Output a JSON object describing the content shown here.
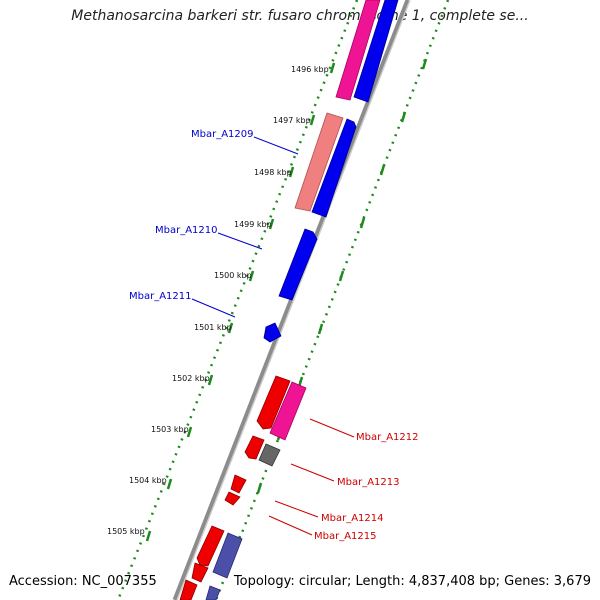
{
  "title": "Methanosarcina barkeri str. fusaro chromosome 1, complete se...",
  "accession": "Accession: NC_007355",
  "summary": "Topology: circular; Length: 4,837,408 bp; Genes: 3,679",
  "ticks": [
    "1496 kbp",
    "1497 kbp",
    "1498 kbp",
    "1499 kbp",
    "1500 kbp",
    "1501 kbp",
    "1502 kbp",
    "1503 kbp",
    "1504 kbp",
    "1505 kbp"
  ],
  "gene_labels": [
    {
      "text": "Mbar_A1209",
      "color": "#0000cc"
    },
    {
      "text": "Mbar_A1210",
      "color": "#0000cc"
    },
    {
      "text": "Mbar_A1211",
      "color": "#0000cc"
    },
    {
      "text": "Mbar_A1212",
      "color": "#cc0000"
    },
    {
      "text": "Mbar_A1213",
      "color": "#cc0000"
    },
    {
      "text": "Mbar_A1214",
      "color": "#cc0000"
    },
    {
      "text": "Mbar_A1215",
      "color": "#cc0000"
    }
  ],
  "colors": {
    "backbone": "#8c8c8c",
    "tick_dots": "#1e8a1e",
    "forward": "#0000ee",
    "reverse": "#ee0000",
    "pink": "#ee1493",
    "salmon": "#f08080",
    "gray": "#666666",
    "slate": "#4b4fa8"
  }
}
